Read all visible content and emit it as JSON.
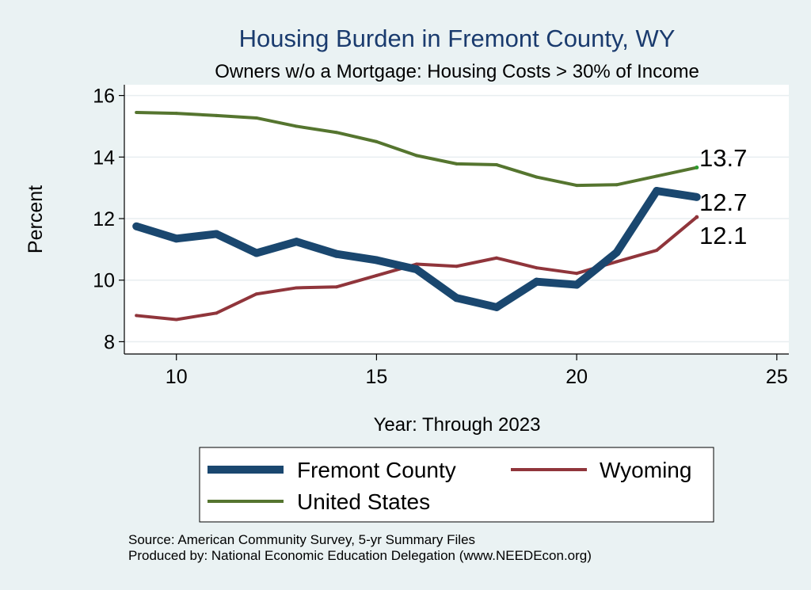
{
  "chart_data": {
    "type": "line",
    "title": "Housing Burden in Fremont County, WY",
    "subtitle": "Owners w/o a Mortgage: Housing Costs > 30% of Income",
    "xlabel": "Year: Through 2023",
    "ylabel": "Percent",
    "xlim": [
      8.7,
      25.3
    ],
    "ylim": [
      7.6,
      16.35
    ],
    "xticks": [
      10,
      15,
      20,
      25
    ],
    "yticks": [
      8,
      10,
      12,
      14,
      16
    ],
    "grid": "horizontal",
    "legend_position": "bottom",
    "x": [
      9,
      10,
      11,
      12,
      13,
      14,
      15,
      16,
      17,
      18,
      19,
      20,
      21,
      22,
      23
    ],
    "series": [
      {
        "name": "Fremont County",
        "color": "#1a476f",
        "values": [
          11.75,
          11.35,
          11.5,
          10.88,
          11.25,
          10.85,
          10.65,
          10.35,
          9.42,
          9.12,
          9.95,
          9.85,
          10.9,
          12.9,
          12.7
        ],
        "end_label": "12.7"
      },
      {
        "name": "Wyoming",
        "color": "#90353b",
        "values": [
          8.85,
          8.72,
          8.93,
          9.55,
          9.75,
          9.78,
          10.15,
          10.52,
          10.45,
          10.72,
          10.4,
          10.22,
          10.6,
          10.97,
          12.05
        ],
        "end_label": "12.1"
      },
      {
        "name": "United States",
        "color": "#55752f",
        "values": [
          15.45,
          15.42,
          15.35,
          15.27,
          15.0,
          14.8,
          14.5,
          14.05,
          13.78,
          13.75,
          13.35,
          13.08,
          13.1,
          13.38,
          13.66
        ],
        "end_label": "13.7"
      }
    ]
  },
  "legend": {
    "items": [
      "Fremont County",
      "Wyoming",
      "United States"
    ]
  },
  "footer": {
    "source": "Source: American Community Survey, 5-yr Summary Files",
    "produced": "Produced by: National Economic Education Delegation (www.NEEDEcon.org)"
  }
}
